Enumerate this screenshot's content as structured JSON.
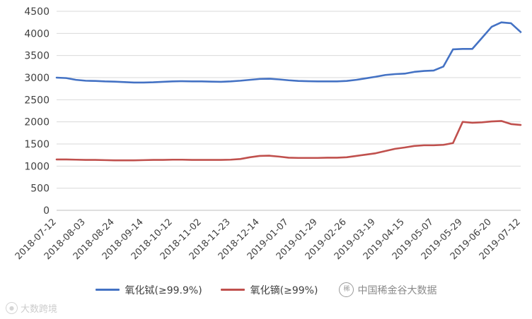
{
  "chart_data": {
    "type": "line",
    "title": "",
    "xlabel": "",
    "ylabel": "",
    "grid": true,
    "legend_position": "bottom",
    "ylim": [
      0,
      4500
    ],
    "y_ticks": [
      0,
      500,
      1000,
      1500,
      2000,
      2500,
      3000,
      3500,
      4000,
      4500
    ],
    "x_tick_labels": [
      "2018-07-12",
      "2018-08-03",
      "2018-08-24",
      "2018-09-14",
      "2018-10-12",
      "2018-11-02",
      "2018-11-23",
      "2018-12-14",
      "2019-01-07",
      "2019-01-29",
      "2019-02-26",
      "2019-03-19",
      "2019-04-15",
      "2019-05-07",
      "2019-05-29",
      "2019-06-20",
      "2019-07-12"
    ],
    "label_every": 3,
    "series": [
      {
        "name": "氧化铽(≥99.9%)",
        "color": "#4472C4",
        "values": [
          3000,
          2990,
          2950,
          2930,
          2925,
          2915,
          2910,
          2900,
          2890,
          2890,
          2895,
          2905,
          2915,
          2920,
          2915,
          2915,
          2910,
          2905,
          2915,
          2930,
          2950,
          2970,
          2975,
          2960,
          2940,
          2925,
          2920,
          2915,
          2915,
          2915,
          2925,
          2950,
          2985,
          3020,
          3060,
          3080,
          3090,
          3130,
          3150,
          3160,
          3250,
          3640,
          3650,
          3650,
          3900,
          4150,
          4250,
          4230,
          4030
        ]
      },
      {
        "name": "氧化镝(≥99%)",
        "color": "#C0504D",
        "values": [
          1150,
          1150,
          1145,
          1140,
          1140,
          1135,
          1130,
          1130,
          1130,
          1135,
          1140,
          1140,
          1145,
          1145,
          1140,
          1140,
          1140,
          1140,
          1145,
          1160,
          1200,
          1230,
          1235,
          1215,
          1190,
          1185,
          1185,
          1185,
          1190,
          1190,
          1200,
          1230,
          1260,
          1290,
          1340,
          1390,
          1420,
          1455,
          1470,
          1470,
          1480,
          1520,
          2000,
          1980,
          1990,
          2010,
          2020,
          1950,
          1930
        ]
      }
    ]
  },
  "watermark": {
    "text": "中国稀金谷大数据",
    "seal_glyph": "稀"
  },
  "footer_logo": {
    "text": "大数跨境",
    "icon_glyph": "●"
  }
}
